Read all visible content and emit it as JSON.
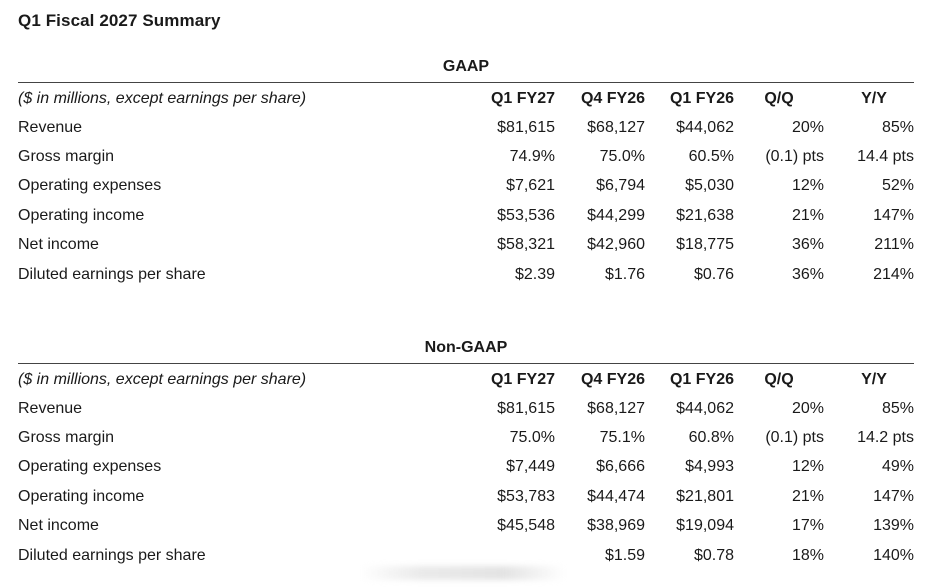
{
  "title": "Q1 Fiscal 2027 Summary",
  "sections": [
    {
      "heading": "GAAP",
      "header": [
        "($ in millions, except earnings per share)",
        "Q1 FY27",
        "Q4 FY26",
        "Q1 FY26",
        "Q/Q",
        "Y/Y"
      ],
      "rows": [
        [
          "Revenue",
          "$81,615",
          "$68,127",
          "$44,062",
          "20%",
          "85%"
        ],
        [
          "Gross margin",
          "74.9%",
          "75.0%",
          "60.5%",
          "(0.1) pts",
          "14.4 pts"
        ],
        [
          "Operating expenses",
          "$7,621",
          "$6,794",
          "$5,030",
          "12%",
          "52%"
        ],
        [
          "Operating income",
          "$53,536",
          "$44,299",
          "$21,638",
          "21%",
          "147%"
        ],
        [
          "Net income",
          "$58,321",
          "$42,960",
          "$18,775",
          "36%",
          "211%"
        ],
        [
          "Diluted earnings per share",
          "$2.39",
          "$1.76",
          "$0.76",
          "36%",
          "214%"
        ]
      ]
    },
    {
      "heading": "Non-GAAP",
      "header": [
        "($ in millions, except earnings per share)",
        "Q1 FY27",
        "Q4 FY26",
        "Q1 FY26",
        "Q/Q",
        "Y/Y"
      ],
      "rows": [
        [
          "Revenue",
          "$81,615",
          "$68,127",
          "$44,062",
          "20%",
          "85%"
        ],
        [
          "Gross margin",
          "75.0%",
          "75.1%",
          "60.8%",
          "(0.1) pts",
          "14.2 pts"
        ],
        [
          "Operating expenses",
          "$7,449",
          "$6,666",
          "$4,993",
          "12%",
          "49%"
        ],
        [
          "Operating income",
          "$53,783",
          "$44,474",
          "$21,801",
          "21%",
          "147%"
        ],
        [
          "Net income",
          "$45,548",
          "$38,969",
          "$19,094",
          "17%",
          "139%"
        ],
        [
          "Diluted earnings per share",
          "",
          "$1.59",
          "$0.78",
          "18%",
          "140%"
        ]
      ]
    }
  ]
}
